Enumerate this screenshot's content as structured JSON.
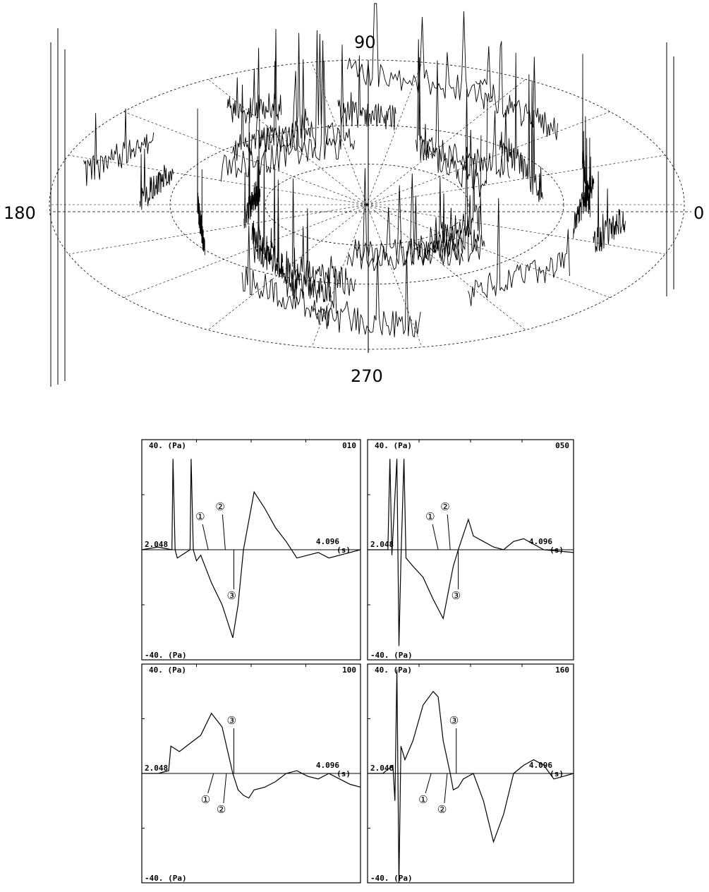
{
  "chart_data": [
    {
      "type": "3d-waterfall",
      "angle_labels": [
        "90",
        "180",
        "0",
        "270"
      ],
      "series": []
    },
    {
      "type": "line",
      "panel_id": "010",
      "ylim": [
        -40,
        40
      ],
      "ymax_label": "40. (Pa)",
      "ymin_label": "-40. (Pa)",
      "x_mid_label": "2.048",
      "x_end_label": "4.096",
      "x_unit_label": "(s)",
      "markers": [
        {
          "label": "①",
          "x": 2.67
        },
        {
          "label": "②",
          "x": 2.83
        },
        {
          "label": "③",
          "x": 2.91
        }
      ],
      "x": [
        2.048,
        2.2,
        2.33,
        2.34,
        2.36,
        2.38,
        2.5,
        2.51,
        2.53,
        2.56,
        2.6,
        2.7,
        2.8,
        2.9,
        2.95,
        3.0,
        3.1,
        3.2,
        3.3,
        3.4,
        3.5,
        3.6,
        3.7,
        3.8,
        4.096
      ],
      "values": [
        0,
        1,
        0,
        33,
        0,
        -3,
        0,
        33,
        0,
        -4,
        -2,
        -12,
        -20,
        -32,
        -20,
        0,
        21,
        15,
        8,
        3,
        -3,
        -2,
        -1,
        -3,
        0
      ]
    },
    {
      "type": "line",
      "panel_id": "050",
      "ylim": [
        -40,
        40
      ],
      "ymax_label": "40. (Pa)",
      "ymin_label": "-40. (Pa)",
      "x_mid_label": "2.048",
      "x_end_label": "4.096",
      "x_unit_label": "(s)",
      "markers": [
        {
          "label": "①",
          "x": 2.75
        },
        {
          "label": "②",
          "x": 2.87
        },
        {
          "label": "③",
          "x": 2.95
        }
      ],
      "x": [
        2.048,
        2.25,
        2.27,
        2.29,
        2.34,
        2.36,
        2.38,
        2.41,
        2.43,
        2.5,
        2.6,
        2.7,
        2.8,
        2.9,
        2.95,
        3.05,
        3.1,
        3.2,
        3.3,
        3.4,
        3.5,
        3.6,
        3.7,
        3.8,
        4.096
      ],
      "values": [
        0,
        0,
        33,
        -2,
        33,
        -35,
        -4,
        33,
        -3,
        -6,
        -10,
        -18,
        -25,
        -6,
        0,
        11,
        5,
        3,
        1,
        0,
        3,
        4,
        2,
        0,
        -1
      ]
    },
    {
      "type": "line",
      "panel_id": "100",
      "ylim": [
        -40,
        40
      ],
      "ymax_label": "40. (Pa)",
      "ymin_label": "-40. (Pa)",
      "x_mid_label": "2.048",
      "x_end_label": "4.096",
      "x_unit_label": "(s)",
      "markers": [
        {
          "label": "①",
          "x": 2.72
        },
        {
          "label": "②",
          "x": 2.84
        },
        {
          "label": "③",
          "x": 2.91
        }
      ],
      "x": [
        2.048,
        2.2,
        2.3,
        2.32,
        2.4,
        2.5,
        2.6,
        2.7,
        2.8,
        2.9,
        2.95,
        3.0,
        3.05,
        3.1,
        3.2,
        3.3,
        3.4,
        3.5,
        3.6,
        3.7,
        3.8,
        3.9,
        4.0,
        4.096
      ],
      "values": [
        0,
        0,
        1,
        10,
        8,
        11,
        14,
        22,
        17,
        0,
        -6,
        -8,
        -9,
        -6,
        -5,
        -3,
        0,
        1,
        -1,
        -2,
        0,
        -2,
        -4,
        -5
      ]
    },
    {
      "type": "line",
      "panel_id": "160",
      "ylim": [
        -40,
        40
      ],
      "ymax_label": "40. (Pa)",
      "ymin_label": "-40. (Pa)",
      "x_mid_label": "2.048",
      "x_end_label": "4.096",
      "x_unit_label": "(s)",
      "markers": [
        {
          "label": "①",
          "x": 2.68
        },
        {
          "label": "②",
          "x": 2.84
        },
        {
          "label": "③",
          "x": 2.93
        }
      ],
      "x": [
        2.048,
        2.2,
        2.3,
        2.32,
        2.34,
        2.36,
        2.38,
        2.42,
        2.5,
        2.6,
        2.7,
        2.75,
        2.8,
        2.87,
        2.9,
        2.95,
        3.0,
        3.1,
        3.2,
        3.3,
        3.4,
        3.5,
        3.6,
        3.7,
        3.8,
        3.9,
        4.0,
        4.096
      ],
      "values": [
        0,
        0,
        3,
        -10,
        38,
        -40,
        10,
        5,
        12,
        25,
        30,
        28,
        12,
        0,
        -6,
        -5,
        -2,
        0,
        -10,
        -25,
        -15,
        0,
        3,
        5,
        3,
        -2,
        -1,
        0
      ]
    }
  ]
}
